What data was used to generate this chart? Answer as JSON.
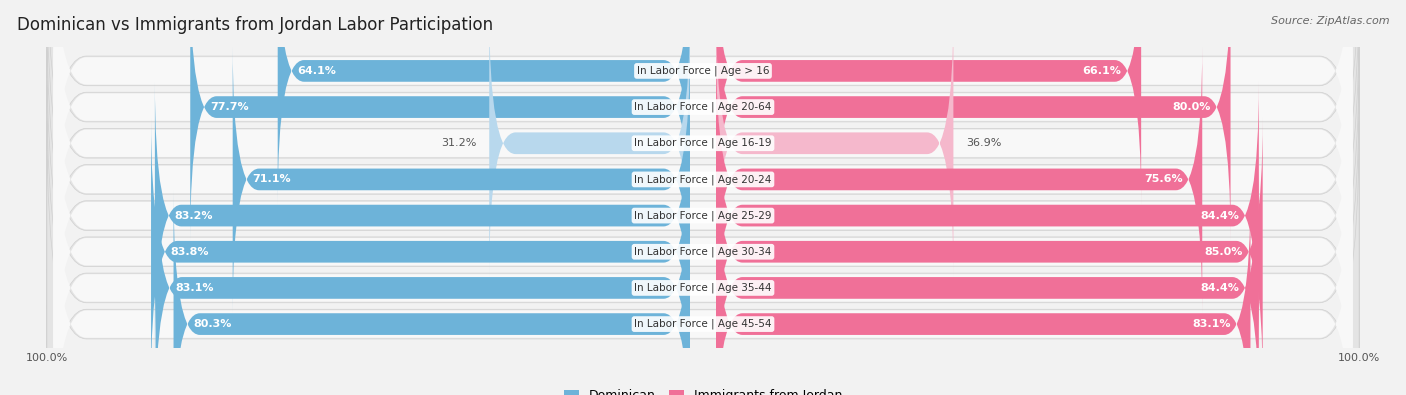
{
  "title": "Dominican vs Immigrants from Jordan Labor Participation",
  "source": "Source: ZipAtlas.com",
  "categories": [
    "In Labor Force | Age > 16",
    "In Labor Force | Age 20-64",
    "In Labor Force | Age 16-19",
    "In Labor Force | Age 20-24",
    "In Labor Force | Age 25-29",
    "In Labor Force | Age 30-34",
    "In Labor Force | Age 35-44",
    "In Labor Force | Age 45-54"
  ],
  "dominican_values": [
    64.1,
    77.7,
    31.2,
    71.1,
    83.2,
    83.8,
    83.1,
    80.3
  ],
  "jordan_values": [
    66.1,
    80.0,
    36.9,
    75.6,
    84.4,
    85.0,
    84.4,
    83.1
  ],
  "dominican_color": "#6db3d9",
  "jordan_color": "#f07098",
  "dominican_light_color": "#b8d8ed",
  "jordan_light_color": "#f5b8cc",
  "row_bg_color": "#e8e8e8",
  "row_inner_color": "#f5f5f5",
  "background_color": "#f2f2f2",
  "max_value": 100.0,
  "title_fontsize": 12,
  "source_fontsize": 8,
  "label_fontsize": 8,
  "tick_fontsize": 8,
  "legend_fontsize": 9
}
